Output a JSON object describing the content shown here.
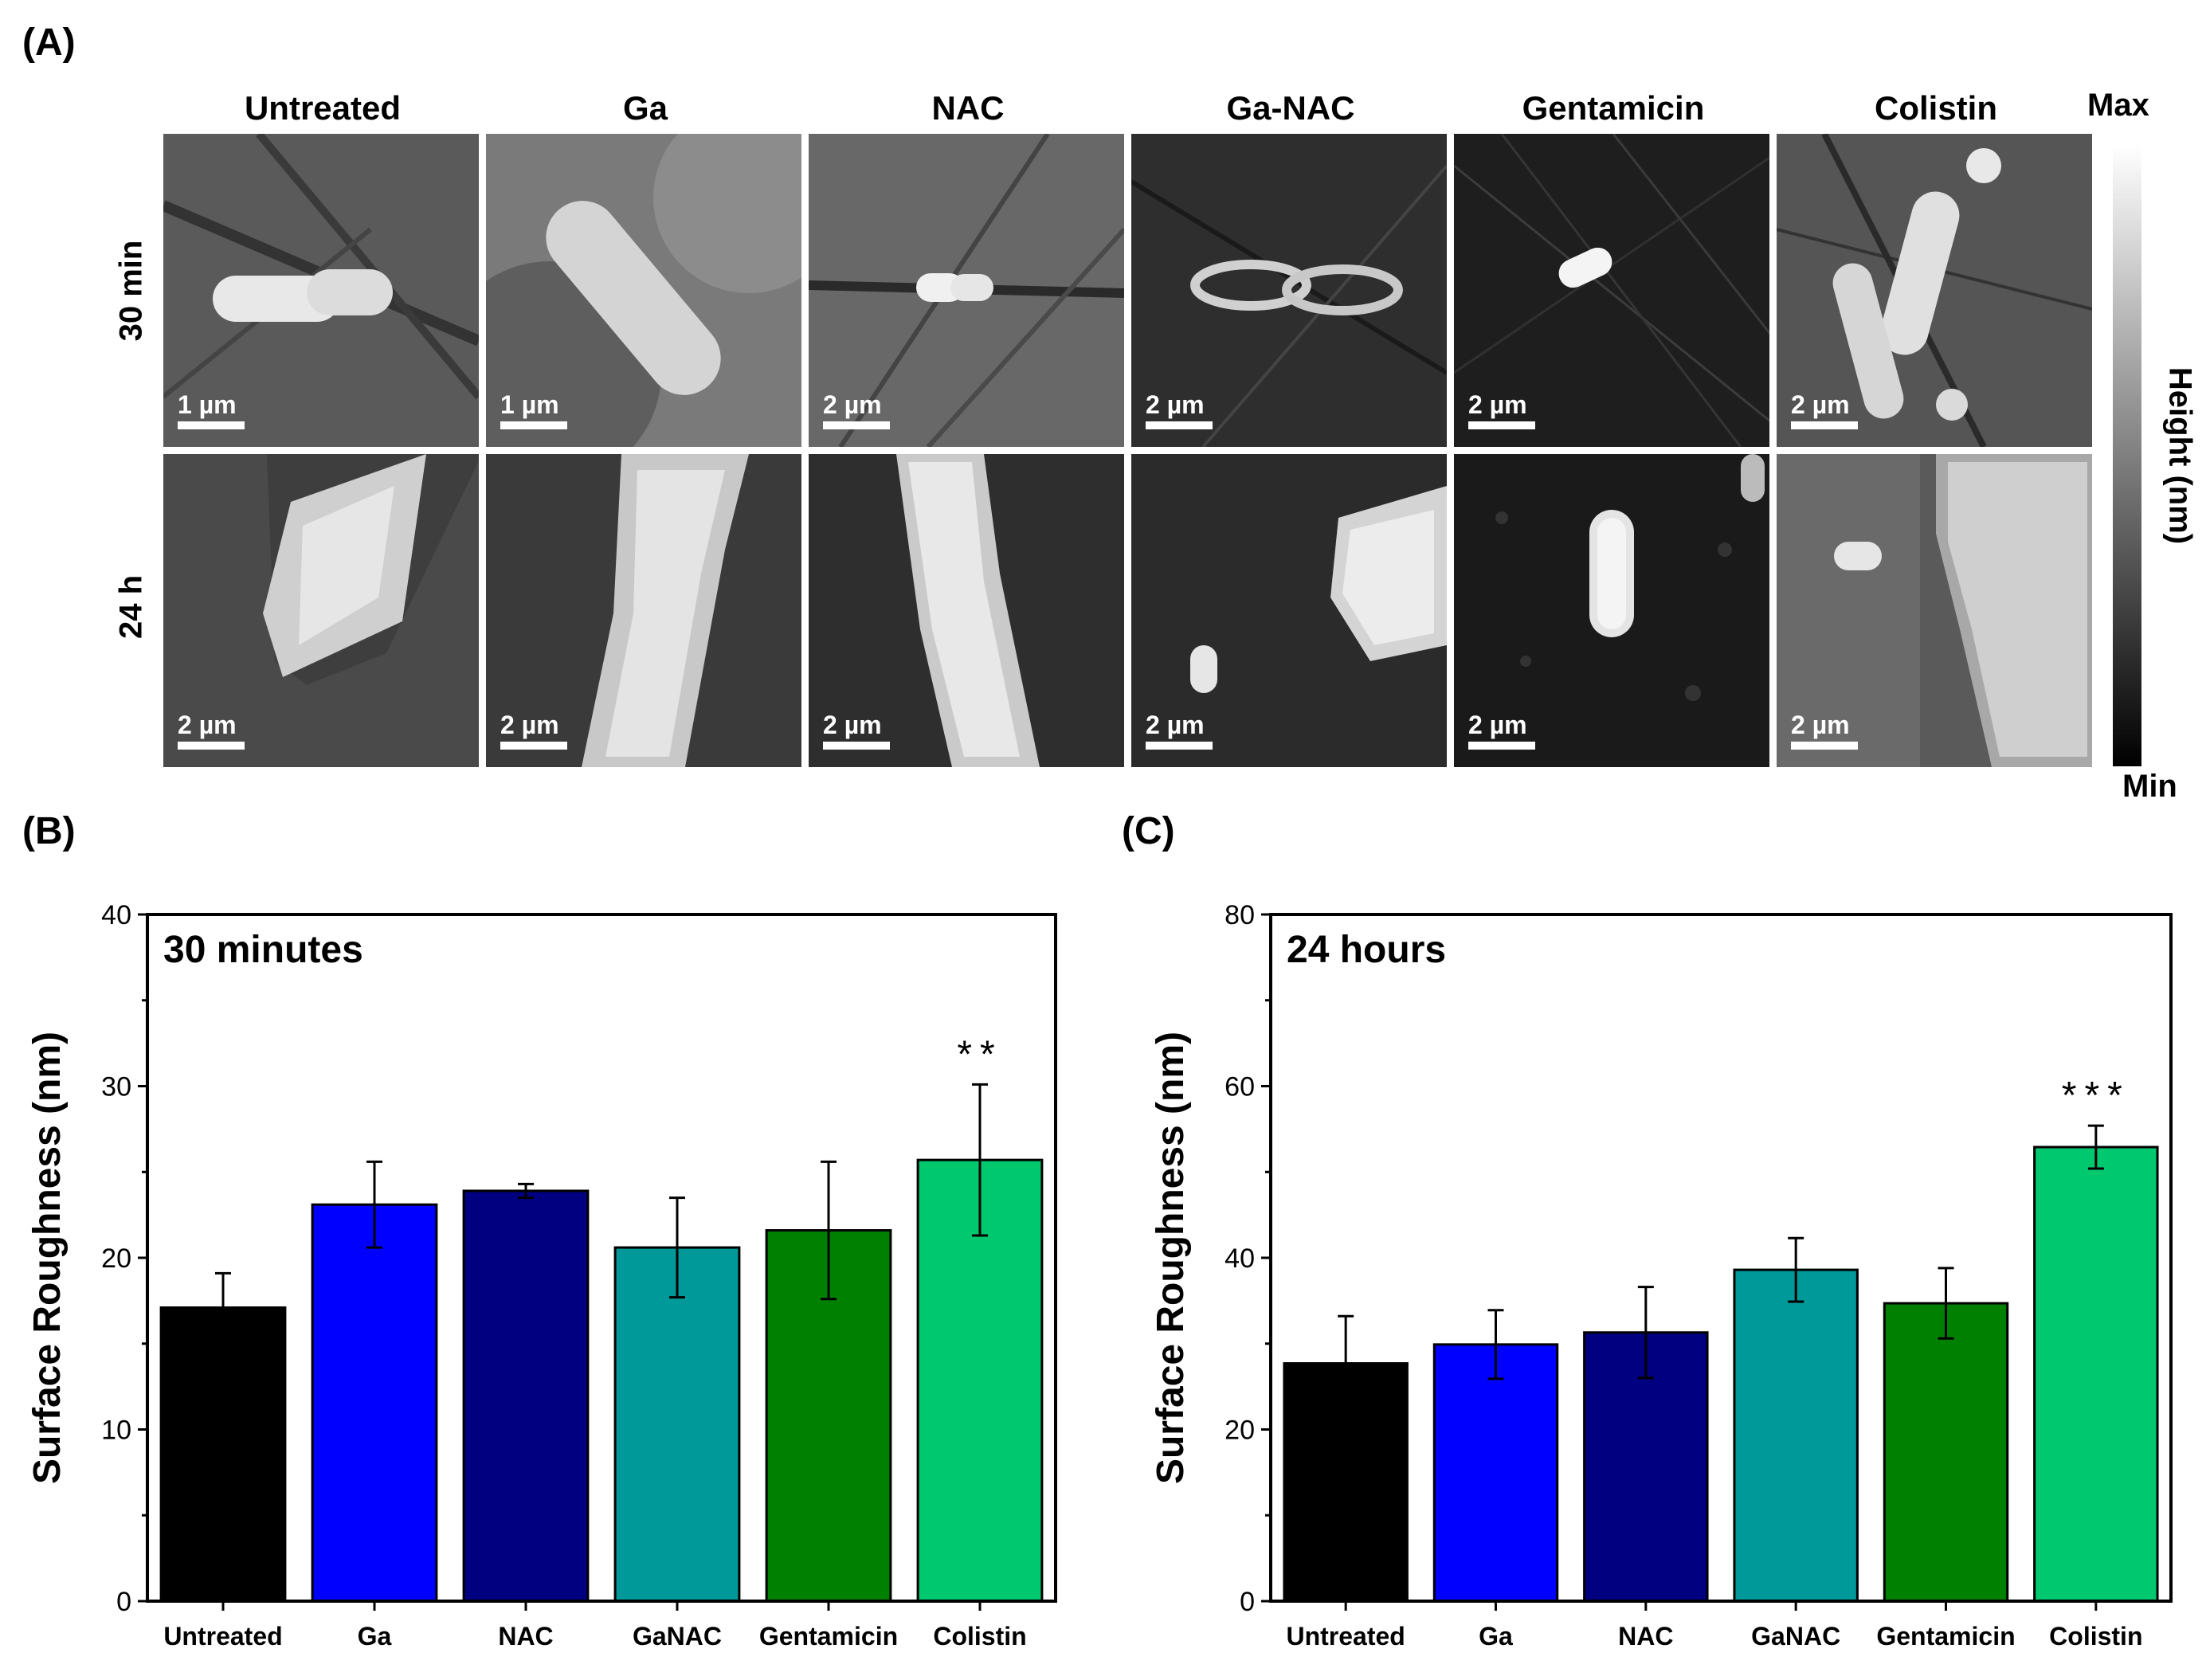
{
  "panel_labels": {
    "a": "(A)",
    "b": "(B)",
    "c": "(C)"
  },
  "afm": {
    "columns": [
      "Untreated",
      "Ga",
      "NAC",
      "Ga-NAC",
      "Gentamicin",
      "Colistin"
    ],
    "rows": [
      "30 min",
      "24 h"
    ],
    "scale_bars": [
      [
        "1 µm",
        "1 µm",
        "2 µm",
        "2 µm",
        "2 µm",
        "2 µm"
      ],
      [
        "2 µm",
        "2 µm",
        "2 µm",
        "2 µm",
        "2 µm",
        "2 µm"
      ]
    ],
    "colorbar": {
      "max": "Max",
      "min": "Min",
      "label": "Height (nm)"
    }
  },
  "chart_data": [
    {
      "type": "bar",
      "annotation": "30 minutes",
      "categories": [
        "Untreated",
        "Ga",
        "NAC",
        "GaNAC",
        "Gentamicin",
        "Colistin"
      ],
      "values": [
        17.1,
        23.1,
        23.9,
        20.6,
        21.6,
        25.7
      ],
      "errors": [
        2.0,
        2.5,
        0.4,
        2.9,
        4.0,
        4.4
      ],
      "significance": [
        "",
        "",
        "",
        "",
        "",
        "**"
      ],
      "colors": [
        "#000000",
        "#0000ff",
        "#000080",
        "#009999",
        "#008000",
        "#00c86e"
      ],
      "ylabel": "Surface Roughness (nm)",
      "xlabel": "",
      "ylim": [
        0,
        40
      ],
      "yticks": [
        0,
        10,
        20,
        30,
        40
      ]
    },
    {
      "type": "bar",
      "annotation": "24 hours",
      "categories": [
        "Untreated",
        "Ga",
        "NAC",
        "GaNAC",
        "Gentamicin",
        "Colistin"
      ],
      "values": [
        27.7,
        29.9,
        31.3,
        38.6,
        34.7,
        52.9
      ],
      "errors": [
        5.5,
        4.0,
        5.3,
        3.7,
        4.1,
        2.5
      ],
      "significance": [
        "",
        "",
        "",
        "",
        "",
        "***"
      ],
      "colors": [
        "#000000",
        "#0000ff",
        "#000080",
        "#009999",
        "#008000",
        "#00c86e"
      ],
      "ylabel": "Surface Roughness (nm)",
      "xlabel": "",
      "ylim": [
        0,
        80
      ],
      "yticks": [
        0,
        20,
        40,
        60,
        80
      ]
    }
  ]
}
